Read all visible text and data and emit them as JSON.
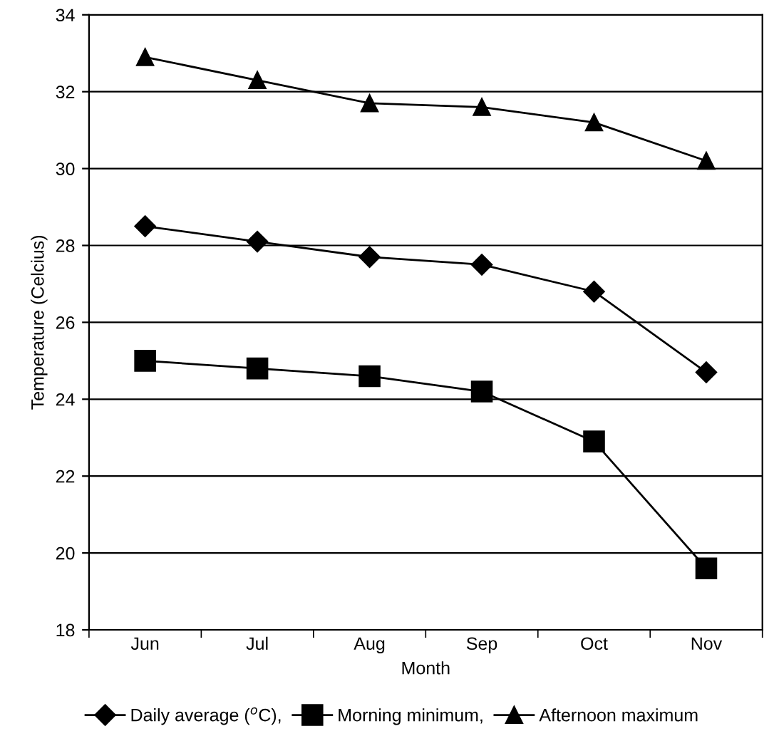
{
  "chart_data": {
    "type": "line",
    "xlabel": "Month",
    "ylabel": "Temperature (Celcius)",
    "categories": [
      "Jun",
      "Jul",
      "Aug",
      "Sep",
      "Oct",
      "Nov"
    ],
    "series": [
      {
        "name": "Daily average ($^{o}$C),",
        "color": "#000000",
        "marker": "diamond",
        "values": [
          28.5,
          28.1,
          27.7,
          27.5,
          26.8,
          24.7
        ]
      },
      {
        "name": "Morning minimum,",
        "color": "#000000",
        "marker": "square",
        "values": [
          25.0,
          24.8,
          24.6,
          24.2,
          22.9,
          19.6
        ]
      },
      {
        "name": "Afternoon maximum",
        "color": "#000000",
        "marker": "triangle",
        "values": [
          32.9,
          32.3,
          31.7,
          31.6,
          31.2,
          30.2
        ]
      }
    ],
    "ylim": [
      18,
      34
    ],
    "yticks": [
      18,
      20,
      22,
      24,
      26,
      28,
      30,
      32,
      34
    ],
    "grid": "y",
    "legend": "bottom",
    "line_style": "solid"
  }
}
